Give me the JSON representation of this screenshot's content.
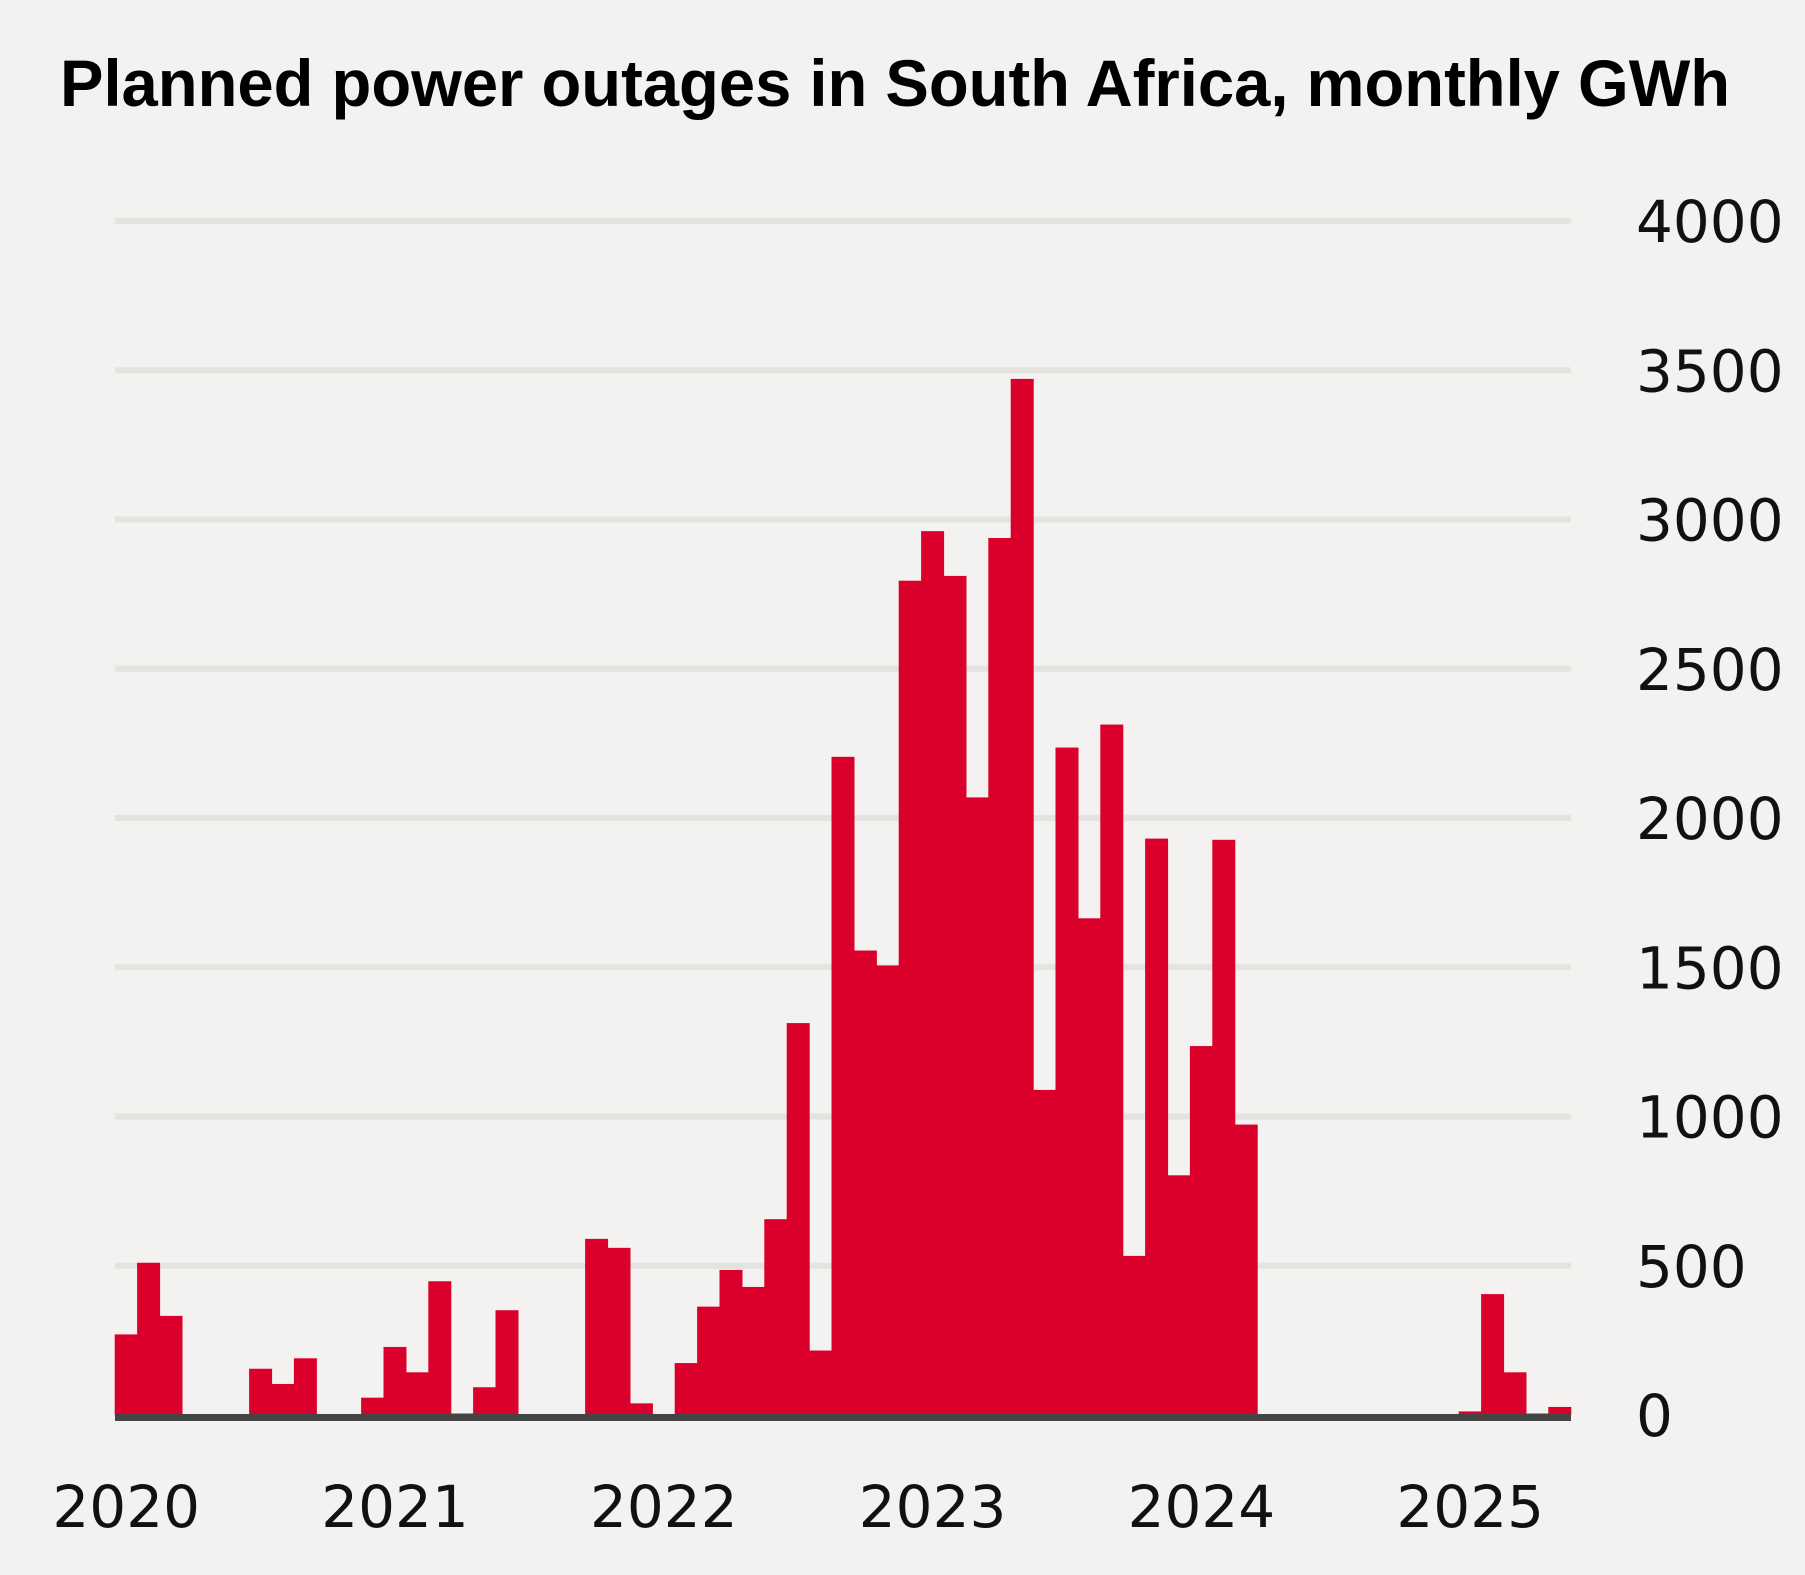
{
  "chart_data": {
    "type": "bar",
    "title": "Planned power outages in South Africa, monthly GWh",
    "xlabel": "",
    "ylabel": "",
    "ylim": [
      0,
      4000
    ],
    "yticks": [
      "0",
      "500",
      "1000",
      "1500",
      "2000",
      "2500",
      "3000",
      "3500",
      "4000"
    ],
    "y_axis_position": "right",
    "grid": true,
    "xtick_labels": [
      "2020",
      "2021",
      "2022",
      "2023",
      "2024",
      "2025"
    ],
    "x_start": "2020-01",
    "x_end": "2025-05",
    "bar_color": "#db002b",
    "values": [
      270,
      510,
      332,
      0,
      0,
      0,
      155,
      104,
      190,
      0,
      0,
      58,
      228,
      143,
      448,
      5,
      93,
      351,
      0,
      0,
      0,
      590,
      560,
      39,
      0,
      174,
      363,
      486,
      429,
      656,
      1313,
      216,
      2205,
      1556,
      1506,
      2795,
      2961,
      2811,
      2069,
      2938,
      3471,
      1089,
      2236,
      1664,
      2313,
      533,
      1931,
      803,
      1236,
      1927,
      973,
      0,
      0,
      0,
      0,
      0,
      0,
      0,
      0,
      0,
      12,
      405,
      143,
      5,
      27
    ]
  }
}
